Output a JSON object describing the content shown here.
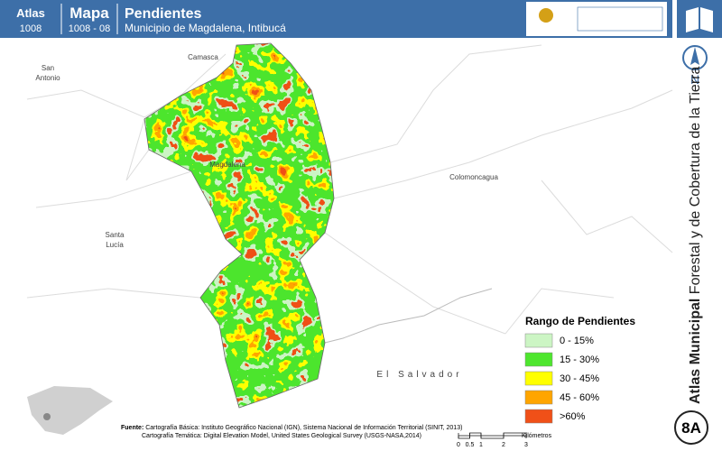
{
  "header": {
    "atlas_label": "Atlas",
    "atlas_number": "1008",
    "map_label": "Mapa",
    "map_number": "1008 - 08",
    "title": "Pendientes",
    "subtitle": "Municipio de Magdalena, Intibucá"
  },
  "places": {
    "camasca": "Camasca",
    "san_antonio": [
      "San",
      "Antonio"
    ],
    "magdalena": "Magdalena",
    "colomoncagua": "Colomoncagua",
    "santa_lucia": [
      "Santa",
      "Lucía"
    ],
    "el_salvador": "El Salvador"
  },
  "legend": {
    "title": "Rango de Pendientes",
    "items": [
      {
        "label": "0 - 15%",
        "color": "#ccf5c4"
      },
      {
        "label": "15 - 30%",
        "color": "#4ee62e"
      },
      {
        "label": "30 - 45%",
        "color": "#ffff00"
      },
      {
        "label": "45 - 60%",
        "color": "#ffa500"
      },
      {
        "label": ">60%",
        "color": "#f05018"
      }
    ]
  },
  "source": {
    "label": "Fuente:",
    "lines": [
      "Cartografía Básica: Instituto Geográfico Nacional (IGN), Sistema Nacional de Información Territorial (SINIT, 2013)",
      "Cartografía Temática: Digital Elevation Model, United States Geological Survey (USGS-NASA,2014)"
    ]
  },
  "scale": {
    "ticks": [
      "0",
      "0.5",
      "1",
      "2",
      "3"
    ],
    "unit": "Kilómetros"
  },
  "sidebar": {
    "north": "N",
    "atlas_bold": "Atlas Municipal",
    "atlas_rest": "Forestal y de Cobertura de la Tierra",
    "page": "8A"
  }
}
